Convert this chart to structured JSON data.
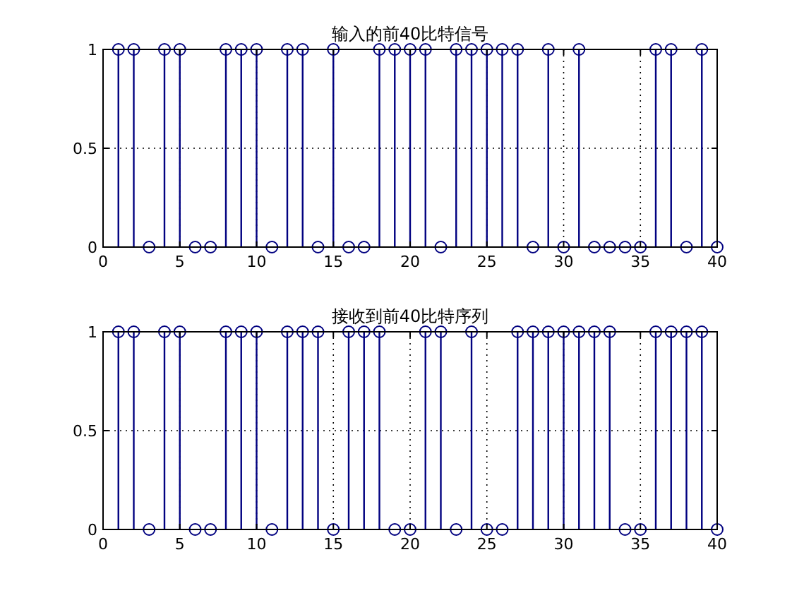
{
  "chart_data": [
    {
      "type": "lollipop",
      "title": "输入的前40比特信号",
      "x": [
        1,
        2,
        3,
        4,
        5,
        6,
        7,
        8,
        9,
        10,
        11,
        12,
        13,
        14,
        15,
        16,
        17,
        18,
        19,
        20,
        21,
        22,
        23,
        24,
        25,
        26,
        27,
        28,
        29,
        30,
        31,
        32,
        33,
        34,
        35,
        36,
        37,
        38,
        39,
        40
      ],
      "series": [
        {
          "color": "#000080",
          "values": [
            1,
            1,
            0,
            1,
            1,
            0,
            0,
            1,
            1,
            1,
            0,
            1,
            1,
            0,
            1,
            0,
            0,
            1,
            1,
            1,
            1,
            0,
            1,
            1,
            1,
            1,
            1,
            0,
            1,
            0,
            1,
            0,
            0,
            0,
            0,
            1,
            1,
            0,
            1,
            0
          ]
        }
      ],
      "xlim": [
        0,
        40
      ],
      "xticks": [
        0,
        5,
        10,
        15,
        20,
        25,
        30,
        35,
        40
      ],
      "ylim": [
        0,
        1
      ],
      "yticks": [
        0,
        0.5,
        1
      ],
      "grid": true,
      "marker": "circle"
    },
    {
      "type": "lollipop",
      "title": "接收到前40比特序列",
      "x": [
        1,
        2,
        3,
        4,
        5,
        6,
        7,
        8,
        9,
        10,
        11,
        12,
        13,
        14,
        15,
        16,
        17,
        18,
        19,
        20,
        21,
        22,
        23,
        24,
        25,
        26,
        27,
        28,
        29,
        30,
        31,
        32,
        33,
        34,
        35,
        36,
        37,
        38,
        39,
        40
      ],
      "series": [
        {
          "color": "#000080",
          "values": [
            1,
            1,
            0,
            1,
            1,
            0,
            0,
            1,
            1,
            1,
            0,
            1,
            1,
            1,
            0,
            1,
            1,
            1,
            0,
            0,
            1,
            1,
            0,
            1,
            0,
            0,
            1,
            1,
            1,
            1,
            1,
            1,
            1,
            0,
            0,
            1,
            1,
            1,
            1,
            0
          ]
        }
      ],
      "xlim": [
        0,
        40
      ],
      "xticks": [
        0,
        5,
        10,
        15,
        20,
        25,
        30,
        35,
        40
      ],
      "ylim": [
        0,
        1
      ],
      "yticks": [
        0,
        0.5,
        1
      ],
      "grid": true,
      "marker": "circle"
    }
  ]
}
